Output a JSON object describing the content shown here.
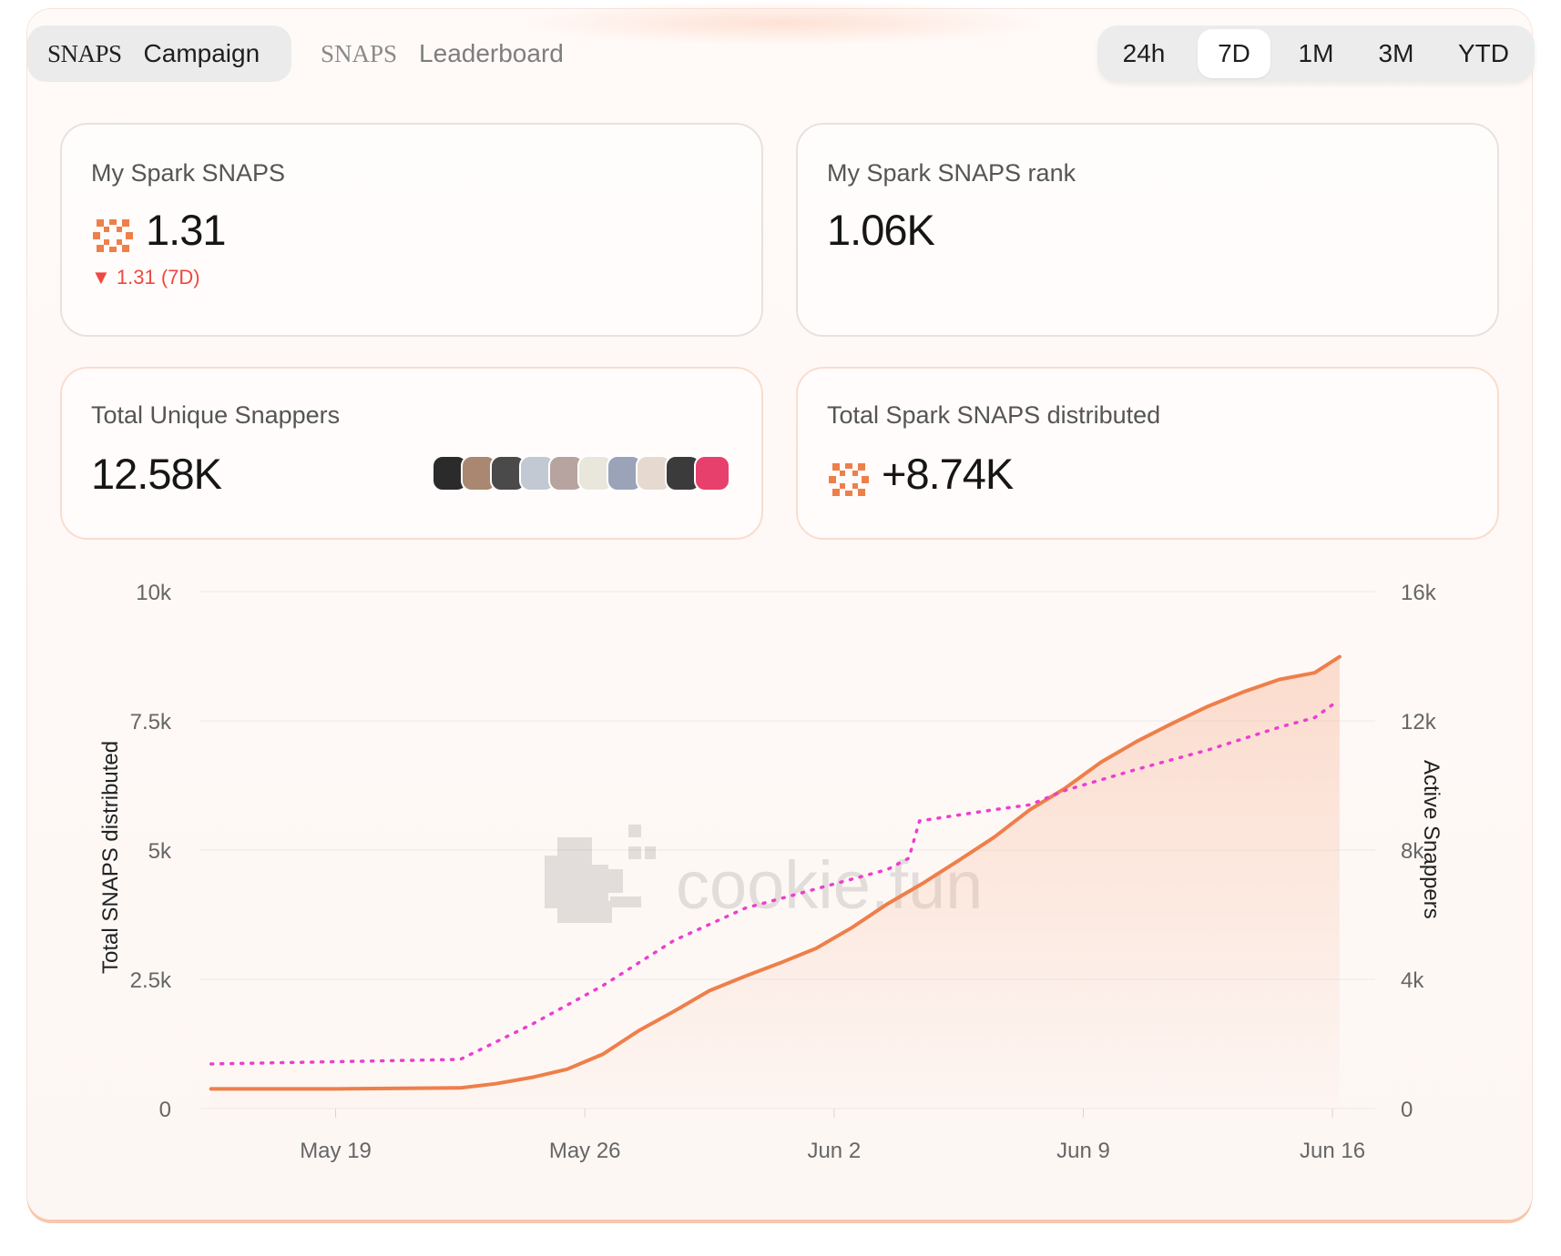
{
  "nav": {
    "tabs": [
      {
        "brand": "SNAPS",
        "label": "Campaign",
        "active": true
      },
      {
        "brand": "SNAPS",
        "label": "Leaderboard",
        "active": false
      }
    ]
  },
  "time_range": {
    "options": [
      "24h",
      "7D",
      "1M",
      "3M",
      "YTD"
    ],
    "selected": "7D"
  },
  "stats": {
    "my_snaps": {
      "label": "My Spark SNAPS",
      "value": "1.31",
      "delta": "▼ 1.31 (7D)",
      "icon": "spark-snaps-icon"
    },
    "my_rank": {
      "label": "My Spark SNAPS rank",
      "value": "1.06K"
    },
    "unique_snappers": {
      "label": "Total Unique Snappers",
      "value": "12.58K",
      "avatar_count": 10
    },
    "distributed": {
      "label": "Total Spark SNAPS distributed",
      "value": "+8.74K",
      "icon": "spark-snaps-icon"
    }
  },
  "watermark": "cookie.fun",
  "colors": {
    "accent": "#ee7f4a",
    "dotted": "#ec3fd0",
    "down": "#f0483e",
    "avatar_colors": [
      "#2b2b2b",
      "#a98770",
      "#4a4a4a",
      "#c2c9d2",
      "#b7a3a0",
      "#e9e6dc",
      "#9aa3b8",
      "#e6d9d0",
      "#3b3b3b",
      "#e8406d"
    ]
  },
  "chart_data": {
    "type": "line",
    "ylabel_left": "Total SNAPS distributed",
    "ylabel_right": "Active Snappers",
    "y_left_ticks": [
      "0",
      "2.5k",
      "5k",
      "7.5k",
      "10k"
    ],
    "y_right_ticks": [
      "0",
      "4k",
      "8k",
      "12k",
      "16k"
    ],
    "ylim_left": [
      0,
      10000
    ],
    "ylim_right": [
      0,
      16000
    ],
    "x_ticks": [
      "May 19",
      "May 26",
      "Jun 2",
      "Jun 9",
      "Jun 16"
    ],
    "x_tick_days": [
      0,
      7,
      14,
      21,
      28
    ],
    "xlim_days": [
      -3.8,
      29.2
    ],
    "grid": true,
    "series": [
      {
        "name": "Total SNAPS distributed",
        "axis": "left",
        "style": "solid-area",
        "points": [
          [
            -3.5,
            380
          ],
          [
            0,
            380
          ],
          [
            3.5,
            400
          ],
          [
            4.5,
            480
          ],
          [
            5.5,
            600
          ],
          [
            6.5,
            760
          ],
          [
            7.5,
            1050
          ],
          [
            8.5,
            1500
          ],
          [
            9.5,
            1880
          ],
          [
            10.5,
            2280
          ],
          [
            11.5,
            2560
          ],
          [
            12.5,
            2820
          ],
          [
            13.5,
            3100
          ],
          [
            14.5,
            3500
          ],
          [
            15.5,
            3960
          ],
          [
            16.5,
            4360
          ],
          [
            17.5,
            4800
          ],
          [
            18.5,
            5250
          ],
          [
            19.5,
            5780
          ],
          [
            20.5,
            6200
          ],
          [
            21.5,
            6700
          ],
          [
            22.5,
            7100
          ],
          [
            23.5,
            7450
          ],
          [
            24.5,
            7780
          ],
          [
            25.5,
            8060
          ],
          [
            26.5,
            8300
          ],
          [
            27.5,
            8430
          ],
          [
            28.2,
            8740
          ]
        ]
      },
      {
        "name": "Active Snappers",
        "axis": "right",
        "style": "dotted",
        "points": [
          [
            -3.5,
            1380
          ],
          [
            3.5,
            1520
          ],
          [
            5.5,
            2600
          ],
          [
            7.5,
            3800
          ],
          [
            9.5,
            5200
          ],
          [
            11.5,
            6200
          ],
          [
            13.5,
            6800
          ],
          [
            15.5,
            7400
          ],
          [
            16.1,
            7750
          ],
          [
            16.4,
            8900
          ],
          [
            18.5,
            9250
          ],
          [
            19.5,
            9400
          ],
          [
            20.5,
            9850
          ],
          [
            22.5,
            10500
          ],
          [
            24.5,
            11100
          ],
          [
            26.5,
            11800
          ],
          [
            27.5,
            12100
          ],
          [
            28.0,
            12500
          ]
        ]
      }
    ]
  }
}
